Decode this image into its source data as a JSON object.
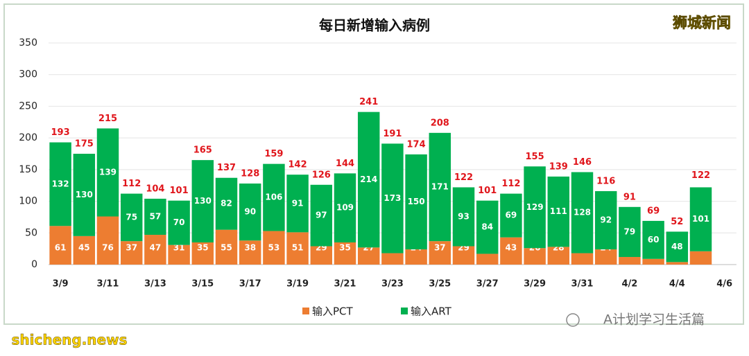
{
  "chart_data": {
    "type": "stacked-bar",
    "title": "每日新增输入病例",
    "categories": [
      "3/9",
      null,
      "3/11",
      null,
      "3/13",
      null,
      "3/15",
      null,
      "3/17",
      null,
      "3/19",
      null,
      "3/21",
      null,
      "3/23",
      null,
      "3/25",
      null,
      "3/27",
      null,
      "3/29",
      null,
      "3/31",
      null,
      "4/2",
      null,
      "4/4",
      null,
      "4/6"
    ],
    "series": [
      {
        "name": "输入PCT",
        "color": "#ed7d31",
        "values": [
          61,
          45,
          76,
          37,
          47,
          31,
          35,
          55,
          38,
          53,
          51,
          29,
          35,
          27,
          18,
          24,
          37,
          29,
          17,
          43,
          26,
          28,
          18,
          24,
          12,
          9,
          4,
          21,
          null
        ]
      },
      {
        "name": "输入ART",
        "color": "#00b050",
        "values": [
          132,
          130,
          139,
          75,
          57,
          70,
          130,
          82,
          90,
          106,
          91,
          97,
          109,
          214,
          173,
          150,
          171,
          93,
          84,
          69,
          129,
          111,
          128,
          92,
          79,
          60,
          48,
          101,
          null
        ]
      }
    ],
    "totals": [
      193,
      175,
      215,
      112,
      104,
      101,
      165,
      137,
      128,
      159,
      142,
      126,
      144,
      241,
      191,
      174,
      208,
      122,
      101,
      112,
      155,
      139,
      146,
      116,
      91,
      69,
      52,
      122,
      null
    ],
    "ylim": [
      0,
      350
    ],
    "yticks": [
      0,
      50,
      100,
      150,
      200,
      250,
      300,
      350
    ],
    "grid": true,
    "legend": "bottom"
  },
  "watermarks": {
    "top_right": "狮城新闻",
    "bottom_right": "A计划学习生活篇",
    "bottom_left": "shicheng.news"
  }
}
